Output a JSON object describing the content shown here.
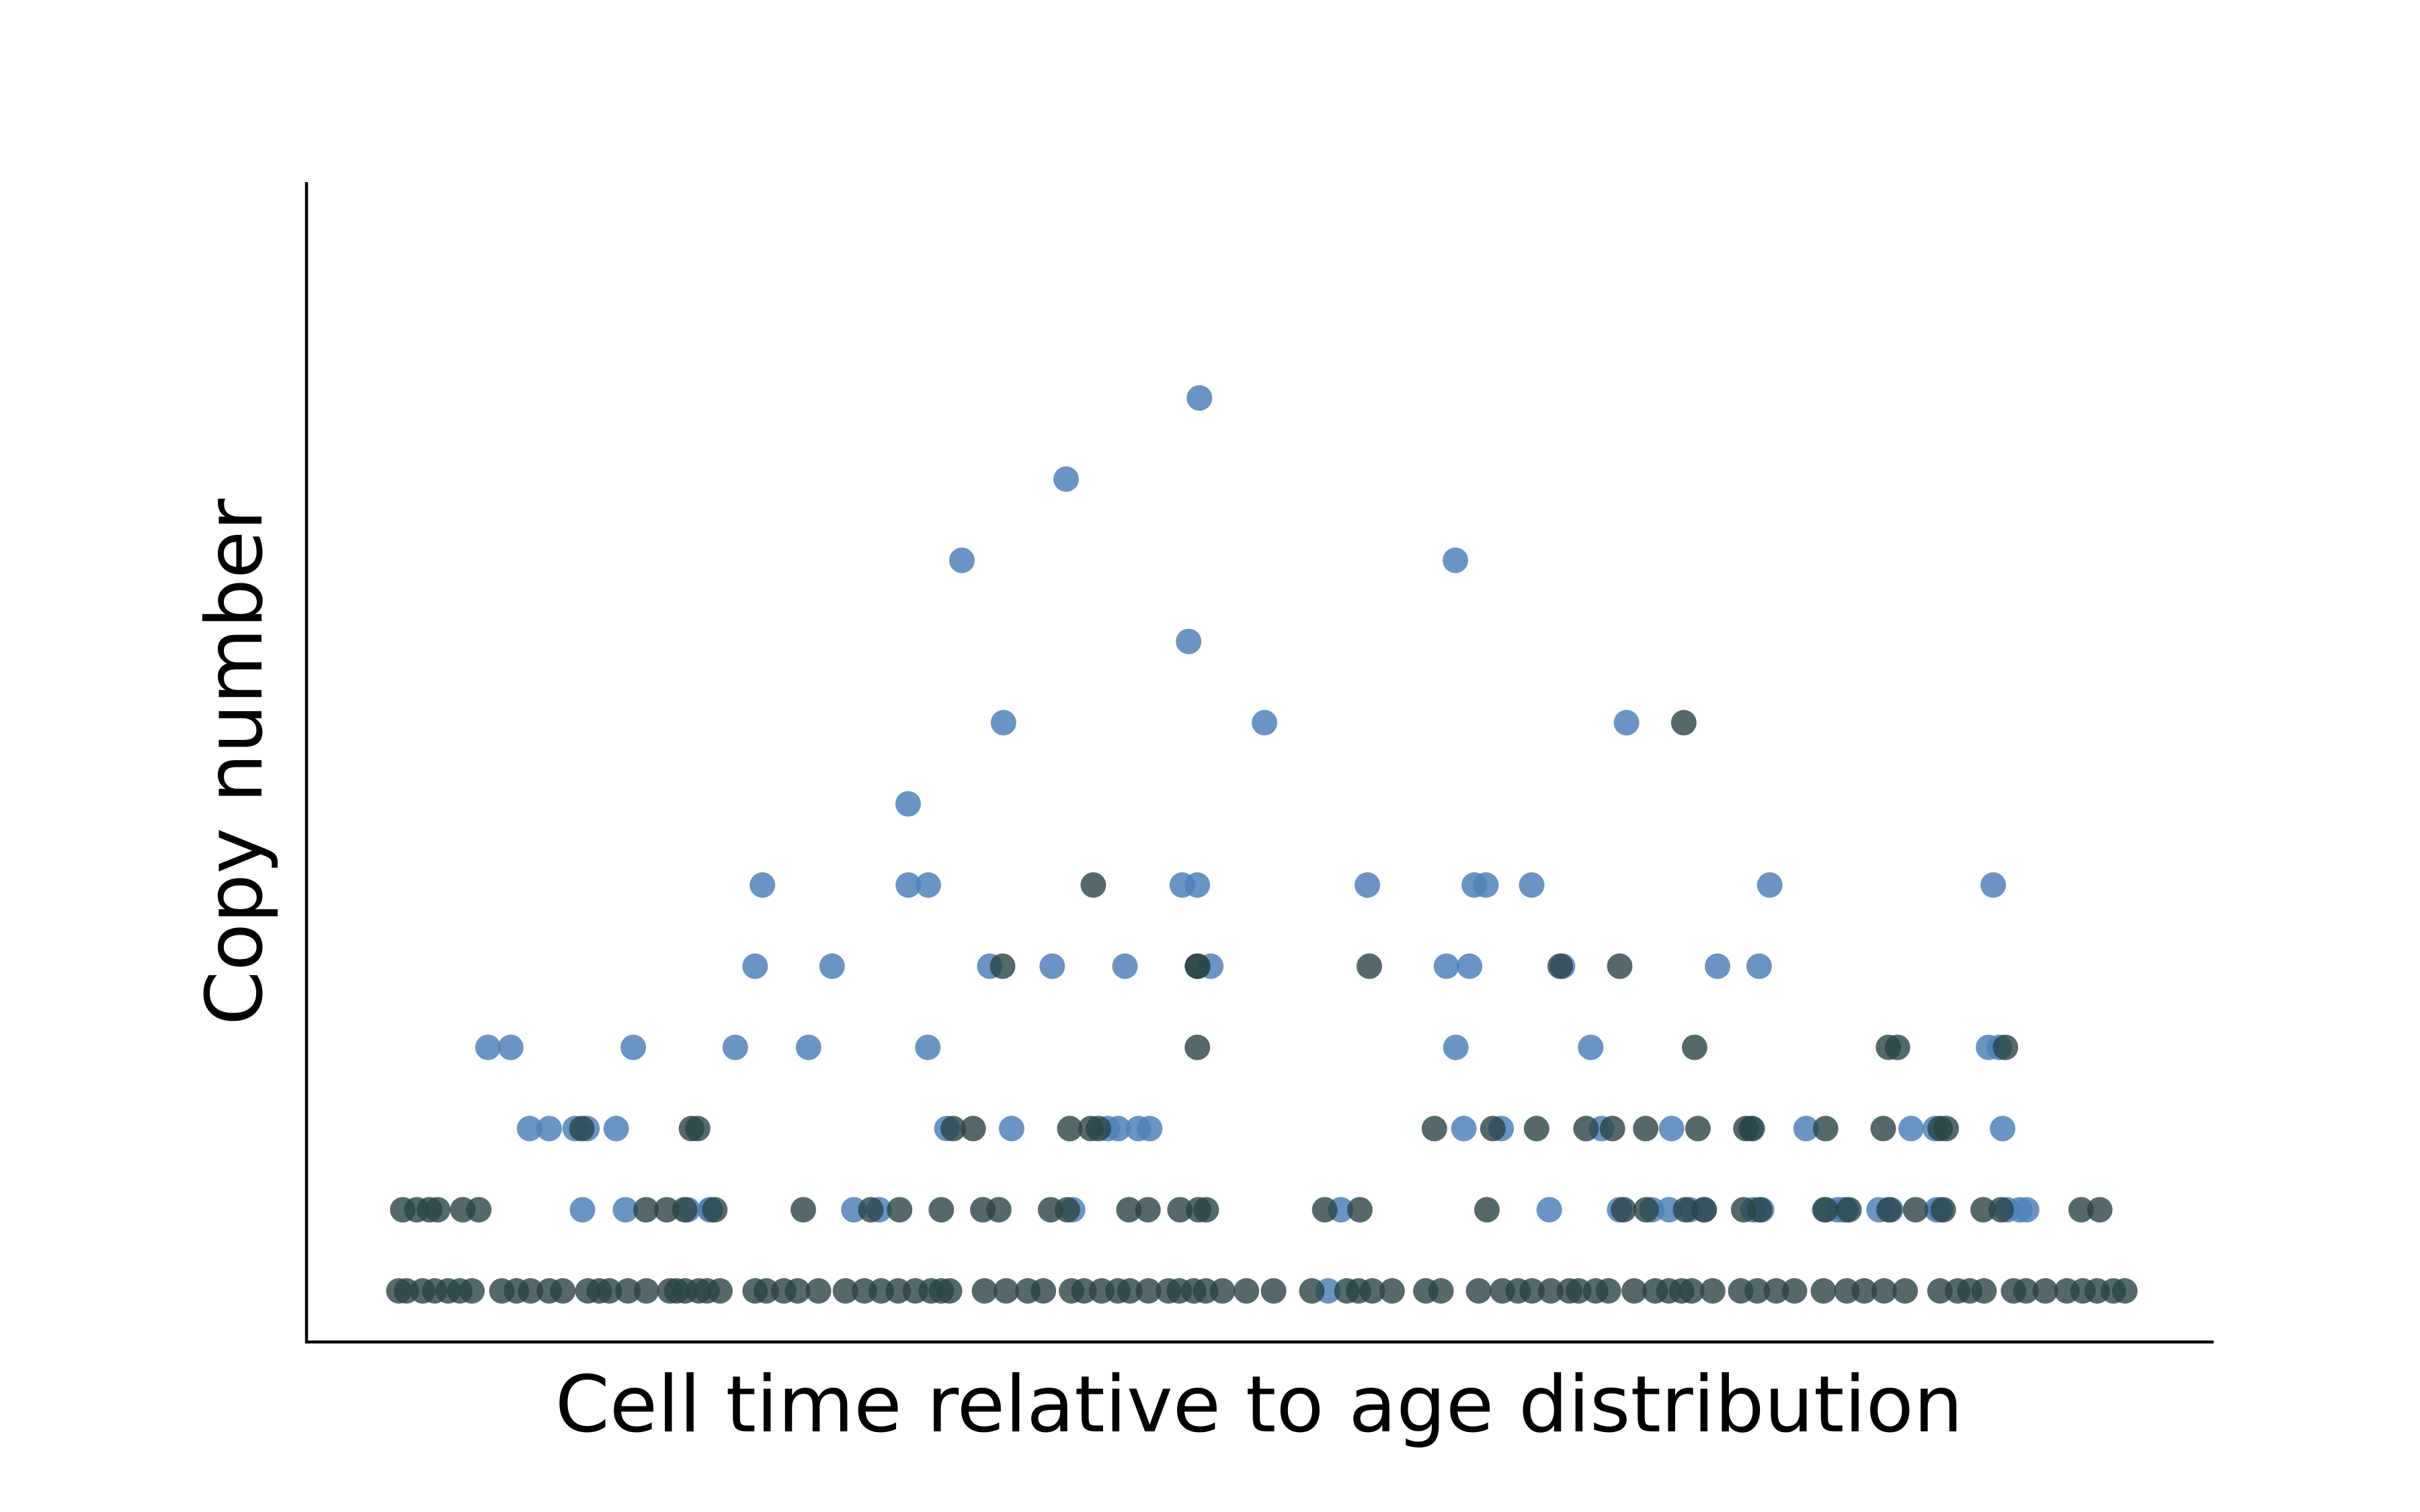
{
  "chart_data": {
    "type": "scatter",
    "title": "",
    "xlabel": "Cell time relative to age distribution",
    "ylabel": "Copy number",
    "xlim": [
      0,
      1
    ],
    "ylim": [
      0,
      13
    ],
    "grid": false,
    "legend": "none",
    "colors": {
      "blue": "#4f81b8",
      "dark": "#2a4446"
    },
    "series": [
      {
        "color": "#4f81b8",
        "points": [
          [
            0.0552,
            3
          ],
          [
            0.0683,
            3
          ],
          [
            0.0791,
            2
          ],
          [
            0.0904,
            2
          ],
          [
            0.1053,
            2
          ],
          [
            0.1121,
            2
          ],
          [
            0.1289,
            2
          ],
          [
            0.1387,
            3
          ],
          [
            0.1095,
            1
          ],
          [
            0.1342,
            1
          ],
          [
            0.1699,
            1
          ],
          [
            0.1829,
            1
          ],
          [
            0.1829,
            1
          ],
          [
            0.1973,
            3
          ],
          [
            0.2087,
            4
          ],
          [
            0.2129,
            5
          ],
          [
            0.2394,
            3
          ],
          [
            0.2529,
            4
          ],
          [
            0.2654,
            1
          ],
          [
            0.2799,
            1
          ],
          [
            0.2966,
            6
          ],
          [
            0.2967,
            5
          ],
          [
            0.3082,
            5
          ],
          [
            0.3079,
            3
          ],
          [
            0.3189,
            2
          ],
          [
            0.3275,
            9
          ],
          [
            0.3435,
            4
          ],
          [
            0.3514,
            7
          ],
          [
            0.3561,
            2
          ],
          [
            0.3794,
            4
          ],
          [
            0.3874,
            10
          ],
          [
            0.3911,
            1
          ],
          [
            0.4112,
            2
          ],
          [
            0.4173,
            2
          ],
          [
            0.4212,
            4
          ],
          [
            0.4289,
            2
          ],
          [
            0.4354,
            2
          ],
          [
            0.4541,
            5
          ],
          [
            0.4578,
            8
          ],
          [
            0.4628,
            5
          ],
          [
            0.464,
            11
          ],
          [
            0.4705,
            4
          ],
          [
            0.5014,
            7
          ],
          [
            0.5379,
            0
          ],
          [
            0.5452,
            1
          ],
          [
            0.5605,
            5
          ],
          [
            0.6111,
            9
          ],
          [
            0.6113,
            3
          ],
          [
            0.6059,
            4
          ],
          [
            0.6192,
            4
          ],
          [
            0.6159,
            2
          ],
          [
            0.6219,
            5
          ],
          [
            0.6286,
            5
          ],
          [
            0.6374,
            2
          ],
          [
            0.6549,
            5
          ],
          [
            0.665,
            1
          ],
          [
            0.6726,
            4
          ],
          [
            0.6888,
            3
          ],
          [
            0.6951,
            2
          ],
          [
            0.7094,
            7
          ],
          [
            0.7054,
            1
          ],
          [
            0.724,
            1
          ],
          [
            0.7338,
            1
          ],
          [
            0.7353,
            2
          ],
          [
            0.7456,
            1
          ],
          [
            0.7541,
            1
          ],
          [
            0.7617,
            4
          ],
          [
            0.7856,
            4
          ],
          [
            0.7821,
            1
          ],
          [
            0.7808,
            2
          ],
          [
            0.787,
            1
          ],
          [
            0.7917,
            5
          ],
          [
            0.8126,
            2
          ],
          [
            0.8232,
            1
          ],
          [
            0.8307,
            1
          ],
          [
            0.8341,
            1
          ],
          [
            0.8354,
            1
          ],
          [
            0.8545,
            1
          ],
          [
            0.8612,
            1
          ],
          [
            0.8729,
            2
          ],
          [
            0.8868,
            2
          ],
          [
            0.8877,
            1
          ],
          [
            0.8896,
            1
          ],
          [
            0.9174,
            3
          ],
          [
            0.9201,
            5
          ],
          [
            0.9236,
            3
          ],
          [
            0.9255,
            2
          ],
          [
            0.928,
            1
          ],
          [
            0.9353,
            1
          ],
          [
            0.9393,
            1
          ]
        ]
      },
      {
        "color": "#2a4446",
        "points": [
          [
            0.004,
            0
          ],
          [
            0.0084,
            0
          ],
          [
            0.0177,
            0
          ],
          [
            0.0246,
            0
          ],
          [
            0.0323,
            0
          ],
          [
            0.039,
            0
          ],
          [
            0.046,
            0
          ],
          [
            0.0632,
            0
          ],
          [
            0.0716,
            0
          ],
          [
            0.0797,
            0
          ],
          [
            0.0904,
            0
          ],
          [
            0.0982,
            0
          ],
          [
            0.1126,
            0
          ],
          [
            0.1192,
            0
          ],
          [
            0.1249,
            0
          ],
          [
            0.1356,
            0
          ],
          [
            0.1462,
            0
          ],
          [
            0.1597,
            0
          ],
          [
            0.1636,
            0
          ],
          [
            0.1685,
            0
          ],
          [
            0.1763,
            0
          ],
          [
            0.1811,
            0
          ],
          [
            0.1885,
            0
          ],
          [
            0.2087,
            0
          ],
          [
            0.2151,
            0
          ],
          [
            0.2252,
            0
          ],
          [
            0.2331,
            0
          ],
          [
            0.2451,
            0
          ],
          [
            0.2606,
            0
          ],
          [
            0.2715,
            0
          ],
          [
            0.2811,
            0
          ],
          [
            0.2909,
            0
          ],
          [
            0.3007,
            0
          ],
          [
            0.3098,
            0
          ],
          [
            0.3157,
            0
          ],
          [
            0.3204,
            0
          ],
          [
            0.3405,
            0
          ],
          [
            0.3529,
            0
          ],
          [
            0.3654,
            0
          ],
          [
            0.3743,
            0
          ],
          [
            0.3905,
            0
          ],
          [
            0.3977,
            0
          ],
          [
            0.4078,
            0
          ],
          [
            0.4172,
            0
          ],
          [
            0.424,
            0
          ],
          [
            0.4347,
            0
          ],
          [
            0.4462,
            0
          ],
          [
            0.4524,
            0
          ],
          [
            0.4607,
            0
          ],
          [
            0.4676,
            0
          ],
          [
            0.4772,
            0
          ],
          [
            0.491,
            0
          ],
          [
            0.5066,
            0
          ],
          [
            0.5286,
            0
          ],
          [
            0.5487,
            0
          ],
          [
            0.5554,
            0
          ],
          [
            0.5633,
            0
          ],
          [
            0.5747,
            0
          ],
          [
            0.5941,
            0
          ],
          [
            0.6028,
            0
          ],
          [
            0.6244,
            0
          ],
          [
            0.6381,
            0
          ],
          [
            0.6471,
            0
          ],
          [
            0.6551,
            0
          ],
          [
            0.6659,
            0
          ],
          [
            0.6766,
            0
          ],
          [
            0.6819,
            0
          ],
          [
            0.6917,
            0
          ],
          [
            0.699,
            0
          ],
          [
            0.7138,
            0
          ],
          [
            0.7259,
            0
          ],
          [
            0.7337,
            0
          ],
          [
            0.7411,
            0
          ],
          [
            0.7468,
            0
          ],
          [
            0.7589,
            0
          ],
          [
            0.775,
            0
          ],
          [
            0.7845,
            0
          ],
          [
            0.7954,
            0
          ],
          [
            0.8059,
            0
          ],
          [
            0.8225,
            0
          ],
          [
            0.836,
            0
          ],
          [
            0.846,
            0
          ],
          [
            0.8574,
            0
          ],
          [
            0.8695,
            0
          ],
          [
            0.8895,
            0
          ],
          [
            0.8997,
            0
          ],
          [
            0.9066,
            0
          ],
          [
            0.9148,
            0
          ],
          [
            0.9318,
            0
          ],
          [
            0.9389,
            0
          ],
          [
            0.95,
            0
          ],
          [
            0.9624,
            0
          ],
          [
            0.9716,
            0
          ],
          [
            0.9798,
            0
          ],
          [
            0.9892,
            0
          ],
          [
            0.9957,
            0
          ],
          [
            0.0062,
            1
          ],
          [
            0.0143,
            1
          ],
          [
            0.0216,
            1
          ],
          [
            0.0263,
            1
          ],
          [
            0.0407,
            1
          ],
          [
            0.0499,
            1
          ],
          [
            0.146,
            1
          ],
          [
            0.1579,
            1
          ],
          [
            0.1682,
            1
          ],
          [
            0.1855,
            1
          ],
          [
            0.2364,
            1
          ],
          [
            0.2752,
            1
          ],
          [
            0.2917,
            1
          ],
          [
            0.3157,
            1
          ],
          [
            0.3395,
            1
          ],
          [
            0.3487,
            1
          ],
          [
            0.3785,
            1
          ],
          [
            0.3881,
            1
          ],
          [
            0.4235,
            1
          ],
          [
            0.4344,
            1
          ],
          [
            0.4528,
            1
          ],
          [
            0.4635,
            1
          ],
          [
            0.4679,
            1
          ],
          [
            0.536,
            1
          ],
          [
            0.5562,
            1
          ],
          [
            0.6292,
            1
          ],
          [
            0.7077,
            1
          ],
          [
            0.7207,
            1
          ],
          [
            0.7433,
            1
          ],
          [
            0.7539,
            1
          ],
          [
            0.7767,
            1
          ],
          [
            0.7859,
            1
          ],
          [
            0.8237,
            1
          ],
          [
            0.8372,
            1
          ],
          [
            0.8602,
            1
          ],
          [
            0.8755,
            1
          ],
          [
            0.8914,
            1
          ],
          [
            0.9143,
            1
          ],
          [
            0.9247,
            1
          ],
          [
            0.9706,
            1
          ],
          [
            0.9813,
            1
          ],
          [
            0.1091,
            2
          ],
          [
            0.1721,
            2
          ],
          [
            0.1757,
            2
          ],
          [
            0.3225,
            2
          ],
          [
            0.334,
            2
          ],
          [
            0.3895,
            2
          ],
          [
            0.4016,
            2
          ],
          [
            0.406,
            2
          ],
          [
            0.599,
            2
          ],
          [
            0.6326,
            2
          ],
          [
            0.6577,
            2
          ],
          [
            0.6861,
            2
          ],
          [
            0.7013,
            2
          ],
          [
            0.7204,
            2
          ],
          [
            0.7504,
            2
          ],
          [
            0.778,
            2
          ],
          [
            0.7816,
            2
          ],
          [
            0.8238,
            2
          ],
          [
            0.8569,
            2
          ],
          [
            0.8896,
            2
          ],
          [
            0.8931,
            2
          ],
          [
            0.4628,
            3
          ],
          [
            0.7485,
            3
          ],
          [
            0.8599,
            3
          ],
          [
            0.8651,
            3
          ],
          [
            0.9271,
            3
          ],
          [
            0.463,
            4
          ],
          [
            0.4628,
            4
          ],
          [
            0.3509,
            4
          ],
          [
            0.5616,
            4
          ],
          [
            0.6713,
            4
          ],
          [
            0.7055,
            4
          ],
          [
            0.403,
            5
          ],
          [
            0.7423,
            7
          ]
        ]
      }
    ]
  }
}
